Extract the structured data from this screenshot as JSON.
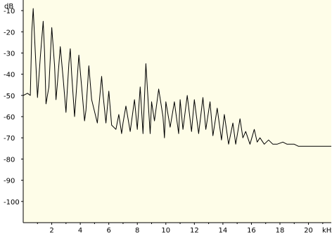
{
  "chart_data": {
    "type": "line",
    "xlabel": "",
    "ylabel": "",
    "x_unit": "kHz",
    "y_unit": "dB",
    "xlim": [
      0,
      21.6
    ],
    "ylim": [
      -110,
      -5
    ],
    "x_ticks": [
      2,
      4,
      6,
      8,
      10,
      12,
      14,
      16,
      18,
      20
    ],
    "y_ticks": [
      -10,
      -20,
      -30,
      -40,
      -50,
      -60,
      -70,
      -80,
      -90,
      -100
    ],
    "grid": false,
    "colors": {
      "background": "#fefde8",
      "axis": "#000000",
      "line": "#000000"
    },
    "series": [
      {
        "x": [
          0.0,
          0.3,
          0.5,
          0.6,
          0.7,
          0.8,
          1.0,
          1.2,
          1.4,
          1.5,
          1.6,
          1.8,
          2.0,
          2.2,
          2.3,
          2.4,
          2.6,
          2.8,
          3.0,
          3.2,
          3.3,
          3.4,
          3.6,
          3.9,
          4.1,
          4.3,
          4.4,
          4.6,
          4.8,
          5.2,
          5.5,
          5.6,
          5.8,
          6.0,
          6.2,
          6.5,
          6.7,
          6.9,
          7.0,
          7.2,
          7.5,
          7.8,
          8.0,
          8.2,
          8.4,
          8.6,
          8.8,
          8.9,
          9.0,
          9.2,
          9.5,
          9.8,
          9.9,
          10.0,
          10.3,
          10.6,
          10.9,
          11.0,
          11.2,
          11.5,
          11.8,
          12.0,
          12.3,
          12.6,
          12.8,
          13.1,
          13.3,
          13.6,
          13.9,
          14.1,
          14.4,
          14.7,
          14.9,
          15.2,
          15.4,
          15.6,
          15.9,
          16.2,
          16.4,
          16.6,
          16.9,
          17.2,
          17.5,
          17.8,
          18.2,
          18.5,
          19.0,
          19.3,
          19.8,
          20.2,
          20.8,
          21.6
        ],
        "y": [
          -50,
          -49,
          -50,
          -20,
          -9,
          -23,
          -51,
          -32,
          -15,
          -30,
          -54,
          -46,
          -18,
          -36,
          -52,
          -44,
          -27,
          -42,
          -58,
          -35,
          -28,
          -40,
          -60,
          -31,
          -46,
          -62,
          -57,
          -36,
          -52,
          -63,
          -41,
          -50,
          -63,
          -48,
          -64,
          -66,
          -59,
          -68,
          -63,
          -55,
          -67,
          -52,
          -66,
          -46,
          -68,
          -35,
          -57,
          -68,
          -53,
          -62,
          -47,
          -60,
          -70,
          -53,
          -65,
          -53,
          -68,
          -52,
          -66,
          -50,
          -67,
          -52,
          -68,
          -51,
          -66,
          -53,
          -69,
          -56,
          -71,
          -59,
          -73,
          -63,
          -73,
          -61,
          -70,
          -67,
          -73,
          -66,
          -72,
          -70,
          -73,
          -71,
          -73,
          -73,
          -72,
          -73,
          -73,
          -74,
          -74,
          -74,
          -74,
          -74
        ]
      }
    ]
  }
}
